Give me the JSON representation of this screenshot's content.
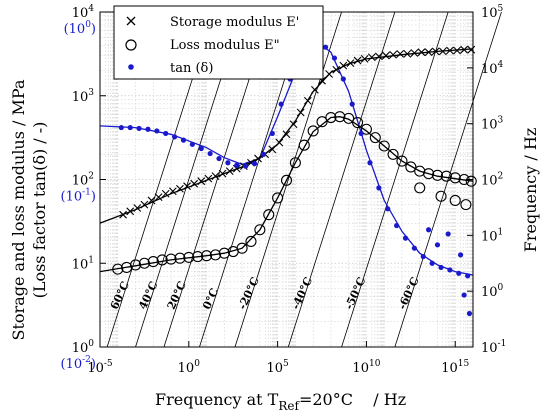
{
  "chart_data": {
    "type": "scatter",
    "xlabel_main": "Frequency at T",
    "xlabel_sub": "Ref",
    "xlabel_tail": "=20°C    / Hz",
    "ylabel_line1": "Storage and loss modulus / MPa",
    "ylabel_line2": "(Loss factor tan(δ) / -)",
    "ylabel_right": "Frequency / Hz",
    "x_axis": {
      "scale": "log",
      "range": [
        1e-05,
        1e+16
      ],
      "tick_exponents": [
        -5,
        0,
        5,
        10,
        15
      ]
    },
    "y_left": {
      "scale": "log",
      "range": [
        1,
        10000
      ],
      "tick_exponents": [
        0,
        1,
        2,
        3,
        4
      ]
    },
    "y_left_tan": {
      "scale": "log",
      "range": [
        0.01,
        1
      ],
      "ticks": [
        {
          "exp": "-2",
          "at": 1
        },
        {
          "exp": "-1",
          "at": 100
        },
        {
          "exp": "0",
          "at": 10000
        }
      ]
    },
    "y_right": {
      "scale": "log",
      "range": [
        0.1,
        100000
      ],
      "tick_exponents": [
        -1,
        0,
        1,
        2,
        3,
        4,
        5
      ]
    },
    "grid": true,
    "legend": {
      "placement": "top-left",
      "items": [
        {
          "label": "Storage modulus E'",
          "marker": "x",
          "color": "#000000"
        },
        {
          "label": "Loss modulus E\"",
          "marker": "circle",
          "color": "#000000"
        },
        {
          "label": "tan (δ)",
          "marker": "dot",
          "color": "#1a1acc"
        }
      ]
    },
    "isotherms": [
      {
        "label": "60°C",
        "shift_log": -4.6
      },
      {
        "label": "40°C",
        "shift_log": -3.0
      },
      {
        "label": "20°C",
        "shift_log": -1.4
      },
      {
        "label": "0°C",
        "shift_log": 0.6
      },
      {
        "label": "-20°C",
        "shift_log": 2.6
      },
      {
        "label": "-40°C",
        "shift_log": 5.6
      },
      {
        "label": "-50°C",
        "shift_log": 8.6
      },
      {
        "label": "-60°C",
        "shift_log": 11.6
      }
    ],
    "series": [
      {
        "name": "Storage modulus E'",
        "marker": "x",
        "points": [
          [
            -3.7,
            1.58
          ],
          [
            -3.3,
            1.62
          ],
          [
            -2.9,
            1.66
          ],
          [
            -2.5,
            1.7
          ],
          [
            -2.1,
            1.75
          ],
          [
            -1.7,
            1.79
          ],
          [
            -1.3,
            1.83
          ],
          [
            -0.9,
            1.86
          ],
          [
            -0.5,
            1.89
          ],
          [
            -0.1,
            1.92
          ],
          [
            0.3,
            1.95
          ],
          [
            0.7,
            1.98
          ],
          [
            1.1,
            2.01
          ],
          [
            1.5,
            2.04
          ],
          [
            1.9,
            2.07
          ],
          [
            2.3,
            2.1
          ],
          [
            2.7,
            2.13
          ],
          [
            3.1,
            2.16
          ],
          [
            3.5,
            2.2
          ],
          [
            3.9,
            2.25
          ],
          [
            4.3,
            2.3
          ],
          [
            4.7,
            2.36
          ],
          [
            5.1,
            2.44
          ],
          [
            5.5,
            2.54
          ],
          [
            5.9,
            2.66
          ],
          [
            6.3,
            2.8
          ],
          [
            6.7,
            2.94
          ],
          [
            7.1,
            3.07
          ],
          [
            7.5,
            3.18
          ],
          [
            7.9,
            3.26
          ],
          [
            8.3,
            3.31
          ],
          [
            8.7,
            3.36
          ],
          [
            9.1,
            3.39
          ],
          [
            9.5,
            3.42
          ],
          [
            9.9,
            3.44
          ],
          [
            10.3,
            3.46
          ],
          [
            10.7,
            3.47
          ],
          [
            11.1,
            3.48
          ],
          [
            11.5,
            3.49
          ],
          [
            11.9,
            3.5
          ],
          [
            12.3,
            3.5
          ],
          [
            12.7,
            3.51
          ],
          [
            13.1,
            3.52
          ],
          [
            13.5,
            3.52
          ],
          [
            13.9,
            3.53
          ],
          [
            14.3,
            3.53
          ],
          [
            14.7,
            3.54
          ],
          [
            15.1,
            3.54
          ],
          [
            15.5,
            3.55
          ],
          [
            15.9,
            3.55
          ]
        ]
      },
      {
        "name": "Loss modulus E\"",
        "marker": "circle",
        "points": [
          [
            -4.0,
            0.93
          ],
          [
            -3.5,
            0.95
          ],
          [
            -3.0,
            0.98
          ],
          [
            -2.5,
            1.0
          ],
          [
            -2.0,
            1.02
          ],
          [
            -1.5,
            1.04
          ],
          [
            -1.0,
            1.05
          ],
          [
            -0.5,
            1.06
          ],
          [
            0.0,
            1.07
          ],
          [
            0.5,
            1.08
          ],
          [
            1.0,
            1.09
          ],
          [
            1.5,
            1.1
          ],
          [
            2.0,
            1.12
          ],
          [
            2.5,
            1.14
          ],
          [
            3.0,
            1.18
          ],
          [
            3.5,
            1.26
          ],
          [
            4.0,
            1.4
          ],
          [
            4.5,
            1.58
          ],
          [
            5.0,
            1.78
          ],
          [
            5.5,
            1.99
          ],
          [
            6.0,
            2.2
          ],
          [
            6.5,
            2.41
          ],
          [
            7.0,
            2.58
          ],
          [
            7.5,
            2.69
          ],
          [
            8.0,
            2.74
          ],
          [
            8.5,
            2.75
          ],
          [
            9.0,
            2.73
          ],
          [
            9.5,
            2.68
          ],
          [
            10.0,
            2.6
          ],
          [
            10.5,
            2.5
          ],
          [
            11.0,
            2.4
          ],
          [
            11.5,
            2.3
          ],
          [
            12.0,
            2.22
          ],
          [
            12.5,
            2.15
          ],
          [
            13.0,
            2.1
          ],
          [
            13.5,
            2.07
          ],
          [
            14.0,
            2.05
          ],
          [
            14.5,
            2.04
          ],
          [
            15.0,
            2.02
          ],
          [
            15.5,
            2.0
          ],
          [
            15.9,
            1.98
          ],
          [
            14.2,
            1.8
          ],
          [
            15.0,
            1.75
          ],
          [
            15.6,
            1.7
          ],
          [
            13.0,
            1.9
          ]
        ]
      },
      {
        "name": "tan (δ)",
        "marker": "dot",
        "points": [
          [
            -3.8,
            2.62
          ],
          [
            -3.3,
            2.62
          ],
          [
            -2.8,
            2.61
          ],
          [
            -2.3,
            2.6
          ],
          [
            -1.8,
            2.58
          ],
          [
            -1.3,
            2.55
          ],
          [
            -0.8,
            2.51
          ],
          [
            -0.3,
            2.47
          ],
          [
            0.2,
            2.42
          ],
          [
            0.7,
            2.37
          ],
          [
            1.2,
            2.31
          ],
          [
            1.7,
            2.25
          ],
          [
            2.2,
            2.2
          ],
          [
            2.7,
            2.17
          ],
          [
            3.2,
            2.16
          ],
          [
            3.7,
            2.19
          ],
          [
            4.2,
            2.3
          ],
          [
            4.7,
            2.55
          ],
          [
            5.2,
            2.9
          ],
          [
            5.7,
            3.2
          ],
          [
            6.2,
            3.42
          ],
          [
            6.7,
            3.54
          ],
          [
            7.2,
            3.6
          ],
          [
            7.7,
            3.58
          ],
          [
            8.2,
            3.45
          ],
          [
            8.7,
            3.2
          ],
          [
            9.2,
            2.9
          ],
          [
            9.7,
            2.55
          ],
          [
            10.2,
            2.2
          ],
          [
            10.7,
            1.9
          ],
          [
            11.2,
            1.65
          ],
          [
            11.7,
            1.45
          ],
          [
            12.2,
            1.3
          ],
          [
            12.7,
            1.18
          ],
          [
            13.2,
            1.08
          ],
          [
            13.7,
            1.0
          ],
          [
            14.2,
            0.95
          ],
          [
            14.7,
            0.92
          ],
          [
            15.2,
            0.88
          ],
          [
            15.7,
            0.85
          ],
          [
            14.0,
            1.22
          ],
          [
            14.6,
            1.35
          ],
          [
            15.3,
            1.1
          ],
          [
            15.8,
            0.4
          ],
          [
            13.5,
            1.4
          ],
          [
            15.5,
            0.62
          ]
        ]
      }
    ],
    "fit_curves": [
      {
        "name": "tan (δ) fit",
        "color": "#1a1acc",
        "points": [
          [
            -5,
            2.64
          ],
          [
            -3,
            2.62
          ],
          [
            -1,
            2.54
          ],
          [
            1,
            2.38
          ],
          [
            2,
            2.26
          ],
          [
            3,
            2.18
          ],
          [
            4,
            2.25
          ],
          [
            5,
            2.75
          ],
          [
            6,
            3.28
          ],
          [
            7,
            3.57
          ],
          [
            7.5,
            3.6
          ],
          [
            8,
            3.52
          ],
          [
            9,
            3.05
          ],
          [
            10,
            2.35
          ],
          [
            11,
            1.75
          ],
          [
            12,
            1.38
          ],
          [
            13,
            1.12
          ],
          [
            14,
            0.98
          ],
          [
            15,
            0.9
          ],
          [
            16,
            0.86
          ]
        ]
      },
      {
        "name": "E' fit",
        "color": "#000000",
        "points": [
          [
            -5,
            1.48
          ],
          [
            -3,
            1.64
          ],
          [
            -1,
            1.83
          ],
          [
            1,
            1.99
          ],
          [
            3,
            2.15
          ],
          [
            4,
            2.26
          ],
          [
            5,
            2.42
          ],
          [
            6,
            2.7
          ],
          [
            7,
            3.05
          ],
          [
            8,
            3.28
          ],
          [
            9,
            3.38
          ],
          [
            10,
            3.44
          ],
          [
            12,
            3.49
          ],
          [
            14,
            3.53
          ],
          [
            16,
            3.56
          ]
        ]
      },
      {
        "name": "E\" fit",
        "color": "#000000",
        "points": [
          [
            -5,
            0.9
          ],
          [
            -3,
            0.97
          ],
          [
            -1,
            1.04
          ],
          [
            1,
            1.09
          ],
          [
            2,
            1.12
          ],
          [
            3,
            1.18
          ],
          [
            4,
            1.4
          ],
          [
            5,
            1.78
          ],
          [
            6,
            2.2
          ],
          [
            7,
            2.57
          ],
          [
            8,
            2.74
          ],
          [
            8.5,
            2.75
          ],
          [
            9,
            2.72
          ],
          [
            10,
            2.58
          ],
          [
            11,
            2.4
          ],
          [
            12,
            2.22
          ],
          [
            13,
            2.1
          ],
          [
            14,
            2.04
          ],
          [
            15,
            2.01
          ],
          [
            16,
            1.98
          ]
        ]
      }
    ]
  }
}
